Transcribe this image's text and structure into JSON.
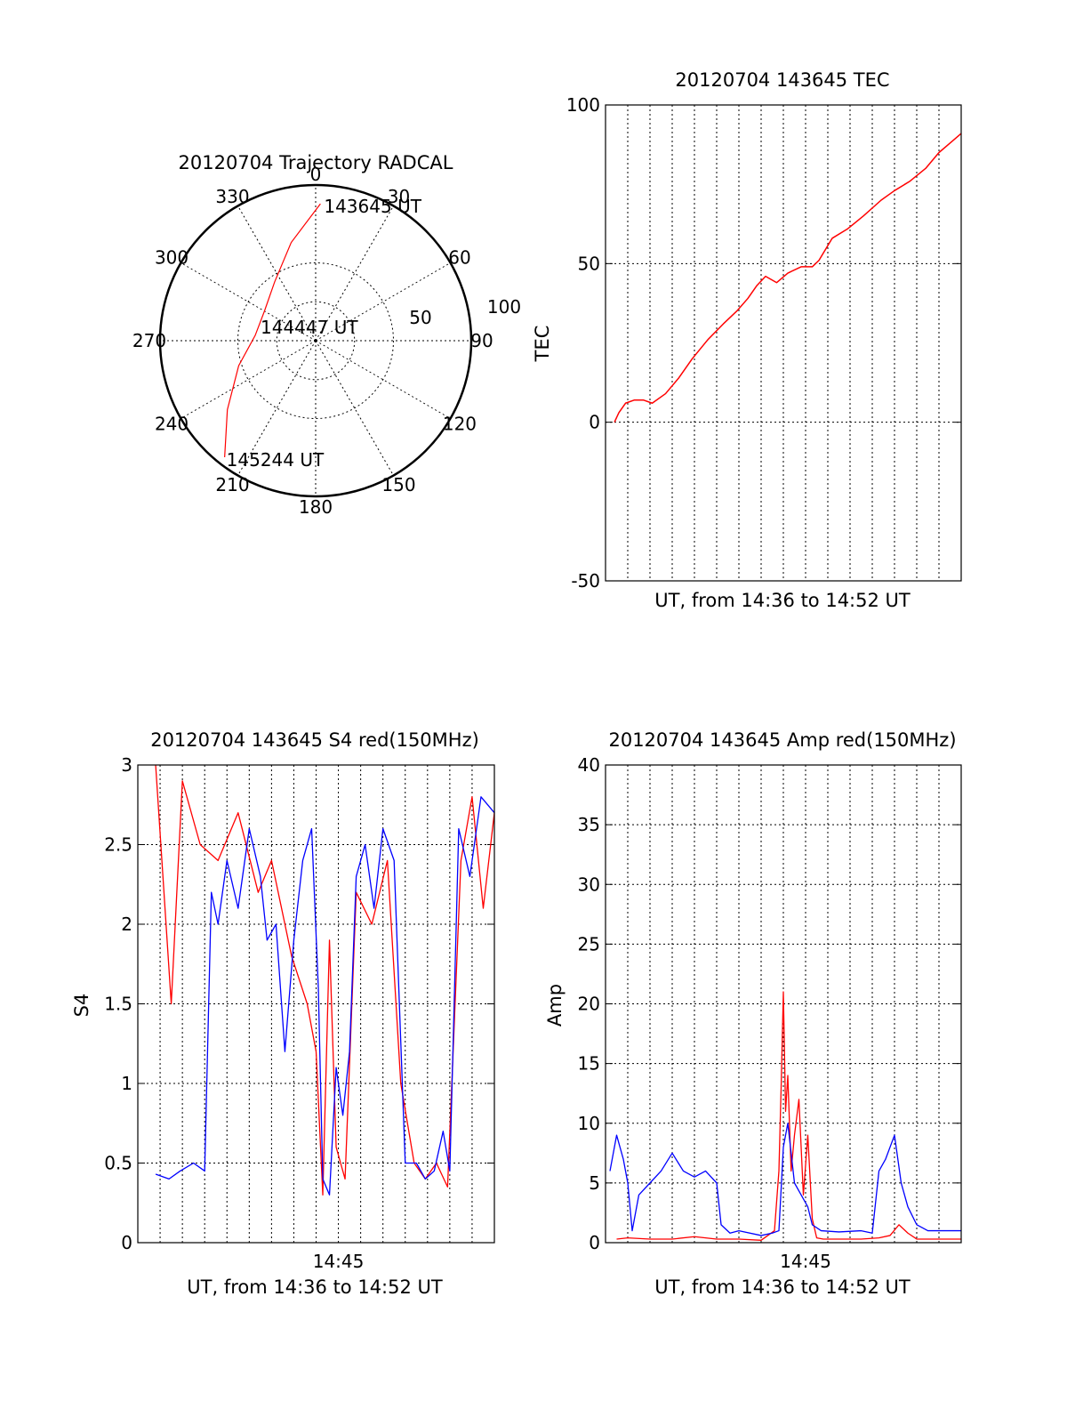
{
  "chart_data": [
    {
      "type": "polar",
      "title": "20120704 Trajectory RADCAL",
      "angle_labels": [
        "0",
        "30",
        "60",
        "90",
        "120",
        "150",
        "180",
        "210",
        "240",
        "270",
        "300",
        "330"
      ],
      "radius_labels": [
        "50",
        "100"
      ],
      "radius_range": [
        0,
        100
      ],
      "grid": true,
      "series": [
        {
          "color": "#ff0000",
          "points": [
            {
              "az": 2,
              "r": 88
            },
            {
              "az": 346,
              "r": 65
            },
            {
              "az": 325,
              "r": 46
            },
            {
              "az": 300,
              "r": 38
            },
            {
              "az": 275,
              "r": 39
            },
            {
              "az": 252,
              "r": 52
            },
            {
              "az": 232,
              "r": 72
            },
            {
              "az": 218,
              "r": 95
            }
          ]
        }
      ],
      "annotations": [
        {
          "text": "143645 UT",
          "az": 2,
          "r": 88
        },
        {
          "text": "144447 UT",
          "az": 0,
          "r": 0
        },
        {
          "text": "145244 UT",
          "az": 218,
          "r": 95
        }
      ]
    },
    {
      "type": "line",
      "title": "20120704 143645 TEC",
      "xlabel": "UT, from 14:36 to 14:52 UT",
      "ylabel": "TEC",
      "xlim": [
        0,
        16
      ],
      "ylim": [
        -50,
        100
      ],
      "yticks": [
        "-50",
        "0",
        "50",
        "100"
      ],
      "grid": true,
      "series": [
        {
          "color": "#ff0000",
          "x": [
            0.4,
            0.6,
            0.9,
            1.3,
            1.7,
            2.1,
            2.7,
            3.3,
            3.9,
            4.6,
            5.3,
            5.9,
            6.4,
            6.8,
            7.2,
            7.7,
            8.2,
            8.8,
            9.3,
            9.6,
            10.2,
            10.9,
            11.6,
            12.4,
            13.0,
            13.7,
            14.4,
            15.0,
            15.5,
            16.0
          ],
          "y": [
            0,
            3,
            6,
            7,
            7,
            6,
            9,
            14,
            20,
            26,
            31,
            35,
            39,
            43,
            46,
            44,
            47,
            49,
            49,
            51,
            58,
            61,
            65,
            70,
            73,
            76,
            80,
            85,
            88,
            91
          ]
        }
      ]
    },
    {
      "type": "line",
      "title": "20120704 143645 S4 red(150MHz)",
      "xlabel": "UT, from 14:36 to 14:52 UT",
      "ylabel": "S4",
      "xlim": [
        0,
        16
      ],
      "ylim": [
        0,
        3
      ],
      "xticks": [
        {
          "value": 9,
          "label": "14:45"
        }
      ],
      "yticks": [
        "0",
        "0.5",
        "1",
        "1.5",
        "2",
        "2.5",
        "3"
      ],
      "grid": true,
      "series": [
        {
          "color": "#ff0000",
          "x": [
            0.8,
            1.5,
            2.0,
            2.8,
            3.6,
            4.5,
            5.4,
            6.0,
            6.9,
            7.6,
            8.0,
            8.3,
            8.6,
            8.9,
            9.3,
            9.8,
            10.5,
            11.2,
            11.8,
            12.4,
            12.9,
            13.4,
            13.9,
            14.5,
            15.0,
            15.5,
            16.0
          ],
          "y": [
            3.0,
            1.5,
            2.9,
            2.5,
            2.4,
            2.7,
            2.2,
            2.4,
            1.8,
            1.5,
            1.2,
            0.3,
            1.9,
            0.6,
            0.4,
            2.2,
            2.0,
            2.4,
            1.0,
            0.5,
            0.4,
            0.5,
            0.35,
            2.4,
            2.8,
            2.1,
            2.7
          ]
        },
        {
          "color": "#0000ff",
          "x": [
            0.8,
            1.4,
            1.9,
            2.5,
            3.0,
            3.3,
            3.6,
            4.0,
            4.5,
            5.0,
            5.5,
            5.8,
            6.2,
            6.6,
            7.0,
            7.4,
            7.8,
            8.1,
            8.3,
            8.6,
            8.9,
            9.2,
            9.5,
            9.8,
            10.2,
            10.6,
            11.0,
            11.5,
            12.0,
            12.5,
            12.9,
            13.3,
            13.7,
            14.0,
            14.4,
            14.9,
            15.4,
            16.0
          ],
          "y": [
            0.43,
            0.4,
            0.45,
            0.5,
            0.45,
            2.2,
            2.0,
            2.4,
            2.1,
            2.6,
            2.3,
            1.9,
            2.0,
            1.2,
            1.9,
            2.4,
            2.6,
            1.6,
            0.4,
            0.3,
            1.1,
            0.8,
            1.2,
            2.3,
            2.5,
            2.1,
            2.6,
            2.4,
            0.5,
            0.5,
            0.4,
            0.45,
            0.7,
            0.45,
            2.6,
            2.3,
            2.8,
            2.7
          ]
        }
      ]
    },
    {
      "type": "line",
      "title": "20120704 143645 Amp red(150MHz)",
      "xlabel": "UT, from 14:36 to 14:52 UT",
      "ylabel": "Amp",
      "xlim": [
        0,
        16
      ],
      "ylim": [
        0,
        40
      ],
      "xticks": [
        {
          "value": 9,
          "label": "14:45"
        }
      ],
      "yticks": [
        "0",
        "5",
        "10",
        "15",
        "20",
        "25",
        "30",
        "35",
        "40"
      ],
      "grid": true,
      "series": [
        {
          "color": "#ff0000",
          "x": [
            0.5,
            1.0,
            2.0,
            3.0,
            4.0,
            5.0,
            6.0,
            7.0,
            7.6,
            7.8,
            7.9,
            8.0,
            8.1,
            8.2,
            8.35,
            8.5,
            8.7,
            8.9,
            9.1,
            9.3,
            9.5,
            9.8,
            10.2,
            10.8,
            11.5,
            12.3,
            12.8,
            13.2,
            13.6,
            14.0,
            15.0,
            16.0
          ],
          "y": [
            0.3,
            0.4,
            0.3,
            0.3,
            0.5,
            0.3,
            0.3,
            0.2,
            1.0,
            6.0,
            13.0,
            21.0,
            11.0,
            14.0,
            6.0,
            9.0,
            12.0,
            4.0,
            9.0,
            2.0,
            0.4,
            0.3,
            0.3,
            0.3,
            0.3,
            0.4,
            0.6,
            1.5,
            0.8,
            0.3,
            0.3,
            0.3
          ]
        },
        {
          "color": "#0000ff",
          "x": [
            0.2,
            0.5,
            0.8,
            1.0,
            1.2,
            1.5,
            2.0,
            2.5,
            3.0,
            3.5,
            4.0,
            4.5,
            5.0,
            5.2,
            5.6,
            6.0,
            7.0,
            7.5,
            7.8,
            8.0,
            8.2,
            8.5,
            8.8,
            9.1,
            9.3,
            9.7,
            10.5,
            11.5,
            12.0,
            12.3,
            12.6,
            13.0,
            13.3,
            13.6,
            14.0,
            14.5,
            15.0,
            16.0
          ],
          "y": [
            6.0,
            9.0,
            7.0,
            5.0,
            1.0,
            4.0,
            5.0,
            6.0,
            7.5,
            6.0,
            5.5,
            6.0,
            5.0,
            1.5,
            0.8,
            1.0,
            0.6,
            0.8,
            1.0,
            8.0,
            10.0,
            5.0,
            4.0,
            3.0,
            1.5,
            1.0,
            0.9,
            1.0,
            0.8,
            6.0,
            7.0,
            9.0,
            5.0,
            3.0,
            1.5,
            1.0,
            1.0,
            1.0
          ]
        }
      ]
    }
  ]
}
